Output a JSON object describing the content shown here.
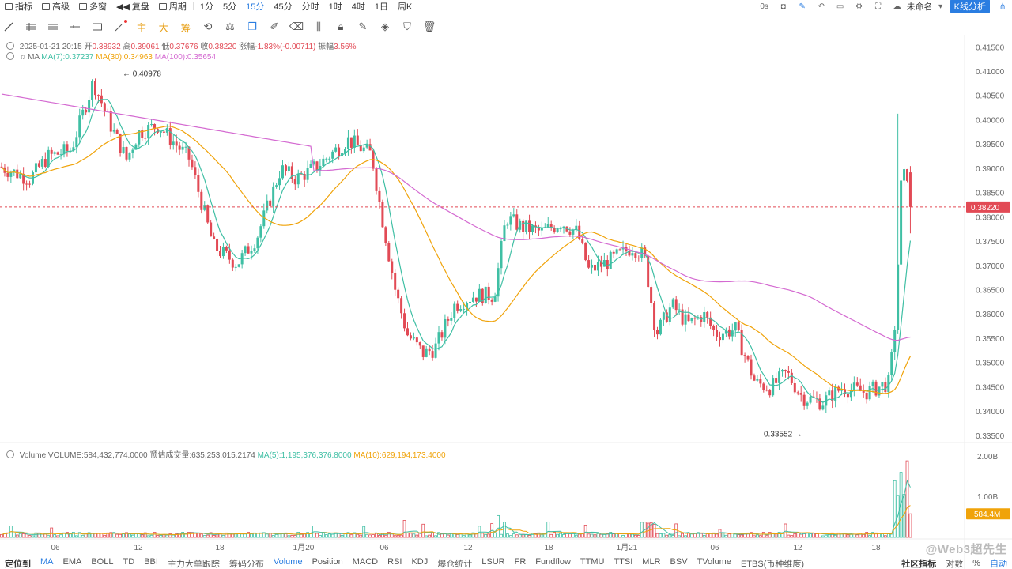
{
  "topbar": {
    "items": [
      {
        "label": "指标",
        "icon": "indicator-icon"
      },
      {
        "label": "高级",
        "icon": "advanced-icon"
      },
      {
        "label": "多窗",
        "icon": "multi-window-icon"
      },
      {
        "label": "复盘",
        "icon": "replay-icon"
      },
      {
        "label": "周期",
        "icon": "period-icon"
      }
    ],
    "intervals": [
      "1分",
      "5分",
      "15分",
      "45分",
      "分时",
      "1时",
      "4时",
      "1日",
      "周K"
    ],
    "active_interval": "15分",
    "right": {
      "seconds_label": "0s",
      "cloud_label": "未命名",
      "analysis_label": "K线分析"
    }
  },
  "toolbar": {
    "tools": [
      "line-tool-icon",
      "hline-grid-icon",
      "horizontal-lines-icon",
      "ray-icon",
      "rectangle-icon",
      "settings-dot-icon"
    ],
    "cn_tools": [
      "主",
      "大",
      "筹"
    ],
    "tools2": [
      "magnet-icon",
      "measure-icon",
      "brush-icon",
      "ruler-icon",
      "shape-icon",
      "layers-icon",
      "lock-icon",
      "filter-icon",
      "trash-icon",
      "copy-icon"
    ]
  },
  "info": {
    "date": "2025-01-21 20:15",
    "open_label": "开",
    "open": "0.38932",
    "high_label": "高",
    "high": "0.39061",
    "low_label": "低",
    "low": "0.37676",
    "close_label": "收",
    "close": "0.38220",
    "change_label": "涨幅",
    "change": "-1.83%(-0.00711)",
    "amp_label": "振幅",
    "amp": "3.56%"
  },
  "ma": {
    "label": "MA",
    "ma7": "MA(7):0.37237",
    "ma30": "MA(30):0.34963",
    "ma100": "MA(100):0.35654"
  },
  "volume_info": {
    "label": "Volume",
    "volume": "VOLUME:584,432,774.0000",
    "est": "预估成交量:635,253,015.2174",
    "ma5": "MA(5):1,195,376,376.8000",
    "ma10": "MA(10):629,194,173.4000"
  },
  "price_axis": {
    "ticks": [
      "0.41500",
      "0.41000",
      "0.40500",
      "0.40000",
      "0.39500",
      "0.39000",
      "0.38500",
      "0.38000",
      "0.37500",
      "0.37000",
      "0.36500",
      "0.36000",
      "0.35500",
      "0.35000",
      "0.34500",
      "0.34000",
      "0.33500"
    ],
    "current": "0.38220",
    "high_marker": "0.40978",
    "low_marker": "0.33552"
  },
  "volume_axis": {
    "ticks": [
      "2.00B",
      "1.00B"
    ],
    "current": "584.4M"
  },
  "time_axis": [
    "06",
    "12",
    "18",
    "1月20",
    "06",
    "12",
    "18",
    "1月21",
    "06",
    "12",
    "18"
  ],
  "colors": {
    "up": "#3fbfa4",
    "down": "#e24a55",
    "ma7": "#3fbfa4",
    "ma30": "#f0a30a",
    "ma100": "#d46ad1",
    "accent": "#2a7de1"
  },
  "bottombar": {
    "left": "定位到",
    "items": [
      "MA",
      "EMA",
      "BOLL",
      "TD",
      "BBI",
      "主力大单跟踪",
      "筹码分布",
      "Volume",
      "Position",
      "MACD",
      "RSI",
      "KDJ",
      "爆仓统计",
      "LSUR",
      "FR",
      "Fundflow",
      "TTMU",
      "TTSI",
      "MLR",
      "BSV",
      "TVolume",
      "ETBS(币种维度)"
    ],
    "right": [
      "社区指标",
      "对数",
      "%",
      "自动"
    ]
  },
  "watermark": "@Web3超先生",
  "chart_data": {
    "type": "candlestick",
    "title": "",
    "interval": "15分",
    "ylim": [
      0.334,
      0.417
    ],
    "x_labels": [
      "06",
      "12",
      "18",
      "1月20",
      "06",
      "12",
      "18",
      "1月21",
      "06",
      "12",
      "18"
    ],
    "key_points": [
      {
        "label": "start",
        "close": 0.3905
      },
      {
        "label": "high",
        "value": 0.40978
      },
      {
        "label": "drop",
        "close": 0.3705
      },
      {
        "label": "recover",
        "close": 0.3975
      },
      {
        "label": "low1",
        "close": 0.3505
      },
      {
        "label": "mid",
        "close": 0.382
      },
      {
        "label": "low2",
        "value": 0.33552
      },
      {
        "label": "last",
        "open": 0.38932,
        "high": 0.39061,
        "low": 0.37676,
        "close": 0.3822
      }
    ],
    "series": [
      {
        "name": "MA(7)",
        "last": 0.37237
      },
      {
        "name": "MA(30)",
        "last": 0.34963
      },
      {
        "name": "MA(100)",
        "last": 0.35654
      }
    ],
    "volume": {
      "last": 584432774,
      "ylim": [
        0,
        2000000000
      ]
    }
  }
}
